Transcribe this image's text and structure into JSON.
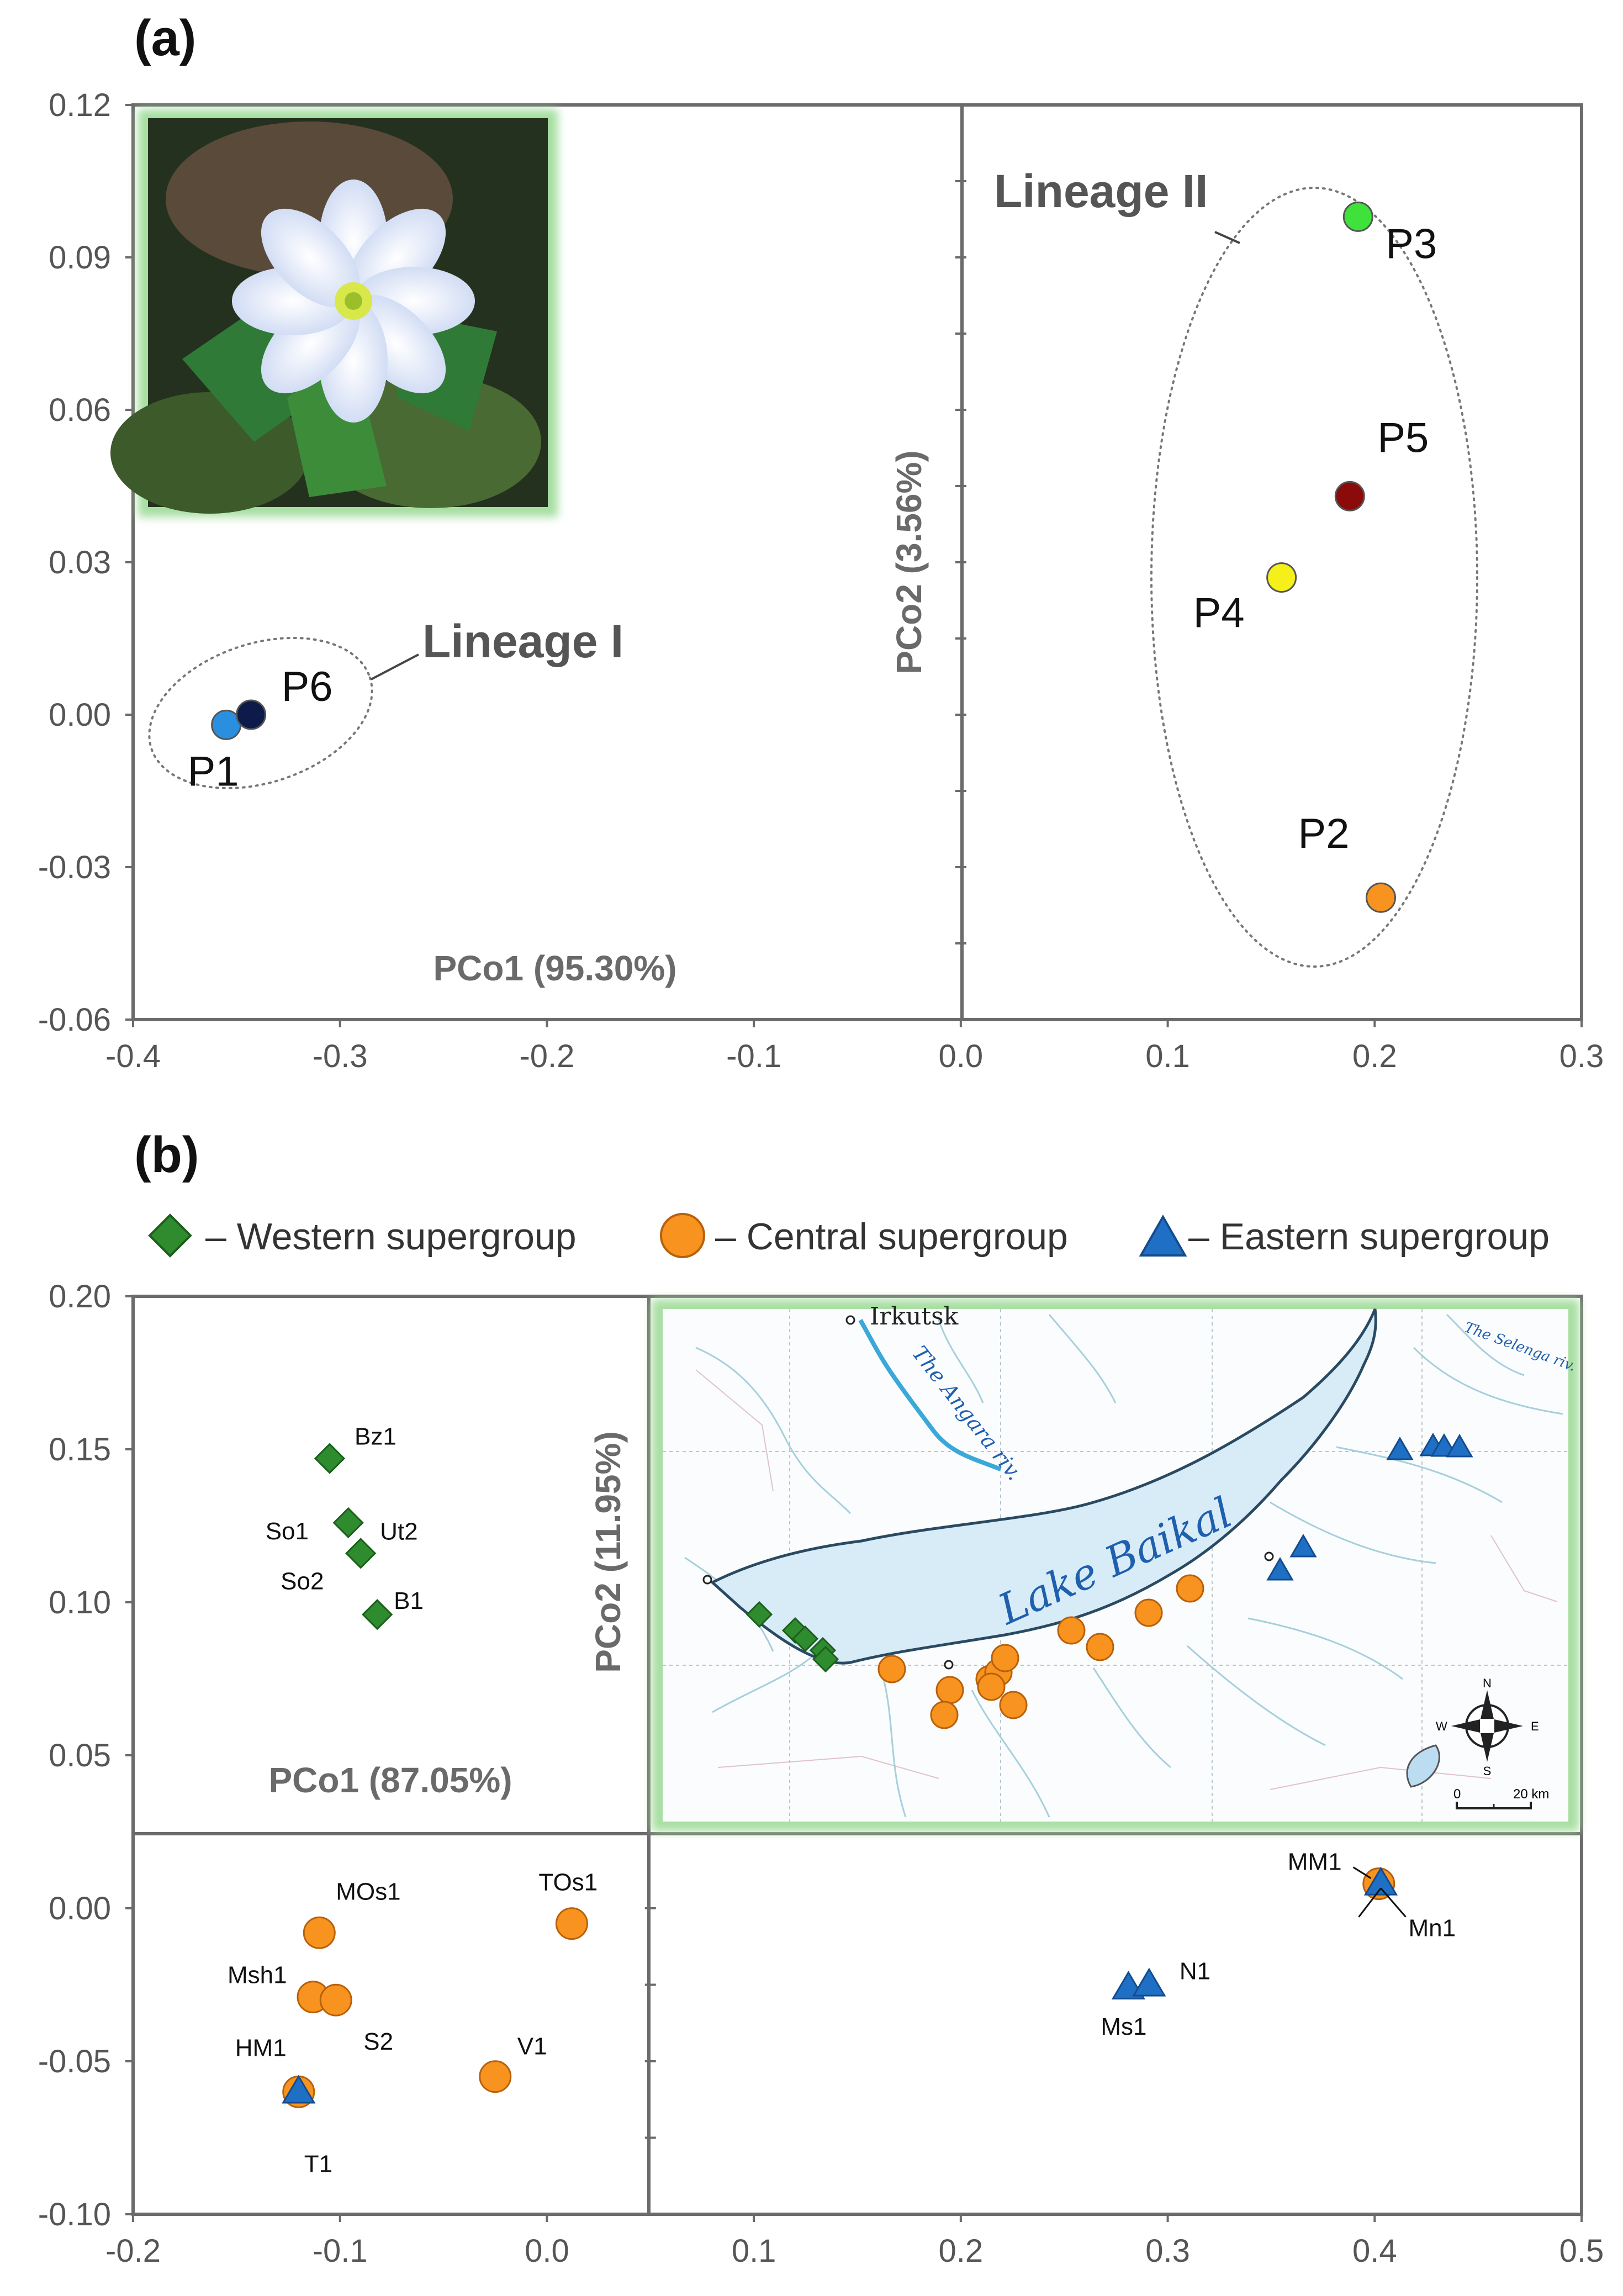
{
  "panels": {
    "a": {
      "label": "(a)",
      "xlabel": "PCo1 (95.30%)",
      "ylabel": "PCo2 (3.56%)",
      "lineage1": "Lineage I",
      "lineage2": "Lineage II",
      "x_ticks": [
        "-0.4",
        "-0.3",
        "-0.2",
        "-0.1",
        "0.0",
        "0.1",
        "0.2",
        "0.3"
      ],
      "y_ticks": [
        "0.12",
        "0.09",
        "0.06",
        "0.03",
        "0.00",
        "-0.03",
        "-0.06"
      ]
    },
    "b": {
      "label": "(b)",
      "xlabel": "PCo1 (87.05%)",
      "ylabel": "PCo2 (11.95%)",
      "legend": {
        "western": "– Western supergroup",
        "central": "– Central supergroup",
        "eastern": "– Eastern supergroup"
      },
      "x_ticks": [
        "-0.2",
        "-0.1",
        "0.0",
        "0.1",
        "0.2",
        "0.3",
        "0.4",
        "0.5"
      ],
      "y_ticks": [
        "0.20",
        "0.15",
        "0.10",
        "0.05",
        "0.00",
        "-0.05",
        "-0.10"
      ],
      "map": {
        "city": "Irkutsk",
        "river1": "The Angara riv.",
        "river2": "The Selenga riv.",
        "lake": "Lake Baikal",
        "scale": "20 km",
        "scale_zero": "0",
        "compass": [
          "N",
          "S",
          "E",
          "W"
        ]
      }
    }
  },
  "colors": {
    "western": "#2e8b2e",
    "central": "#f7931e",
    "eastern": "#1f6fc5",
    "inset_border": "#8fd48a",
    "axis": "#6b6b6b"
  },
  "chart_data": [
    {
      "type": "scatter",
      "panel": "a",
      "xlim": [
        -0.4,
        0.3
      ],
      "ylim": [
        -0.06,
        0.12
      ],
      "xlabel": "PCo1 (95.30%)",
      "ylabel": "PCo2 (3.56%)",
      "points": [
        {
          "name": "P1",
          "x": -0.355,
          "y": -0.002,
          "color": "#2b8fe0"
        },
        {
          "name": "P6",
          "x": -0.343,
          "y": 0.0,
          "color": "#0d1b4a"
        },
        {
          "name": "P3",
          "x": 0.192,
          "y": 0.098,
          "color": "#3ee23a"
        },
        {
          "name": "P5",
          "x": 0.188,
          "y": 0.043,
          "color": "#8b0a0a"
        },
        {
          "name": "P4",
          "x": 0.155,
          "y": 0.027,
          "color": "#f5f01a"
        },
        {
          "name": "P2",
          "x": 0.203,
          "y": -0.036,
          "color": "#f7931e"
        }
      ],
      "groups": [
        {
          "name": "Lineage I",
          "members": [
            "P1",
            "P6"
          ]
        },
        {
          "name": "Lineage II",
          "members": [
            "P2",
            "P3",
            "P4",
            "P5"
          ]
        }
      ]
    },
    {
      "type": "scatter",
      "panel": "b",
      "xlim": [
        -0.2,
        0.5
      ],
      "ylim": [
        -0.1,
        0.2
      ],
      "xlabel": "PCo1 (87.05%)",
      "ylabel": "PCo2 (11.95%)",
      "series": [
        {
          "name": "Western supergroup",
          "marker": "diamond",
          "points": [
            {
              "label": "Bz1",
              "x": -0.105,
              "y": 0.147
            },
            {
              "label": "So1",
              "x": -0.096,
              "y": 0.126
            },
            {
              "label": "Ut2",
              "x": -0.09,
              "y": 0.116
            },
            {
              "label": "So2",
              "x": -0.09,
              "y": 0.116
            },
            {
              "label": "B1",
              "x": -0.082,
              "y": 0.096
            }
          ]
        },
        {
          "name": "Central supergroup",
          "marker": "circle",
          "points": [
            {
              "label": "MOs1",
              "x": -0.11,
              "y": -0.008
            },
            {
              "label": "TOs1",
              "x": 0.012,
              "y": -0.005
            },
            {
              "label": "Msh1",
              "x": -0.113,
              "y": -0.029
            },
            {
              "label": "S2",
              "x": -0.102,
              "y": -0.03
            },
            {
              "label": "V1",
              "x": -0.025,
              "y": -0.055
            },
            {
              "label": "HM1",
              "x": -0.12,
              "y": -0.06
            },
            {
              "label": "MM1",
              "x": 0.402,
              "y": 0.008
            }
          ]
        },
        {
          "name": "Eastern supergroup",
          "marker": "triangle",
          "points": [
            {
              "label": "Ms1",
              "x": 0.281,
              "y": -0.026
            },
            {
              "label": "N1",
              "x": 0.291,
              "y": -0.025
            },
            {
              "label": "Mn1",
              "x": 0.403,
              "y": 0.008
            },
            {
              "label": "T1",
              "x": -0.12,
              "y": -0.06
            }
          ]
        }
      ]
    }
  ]
}
